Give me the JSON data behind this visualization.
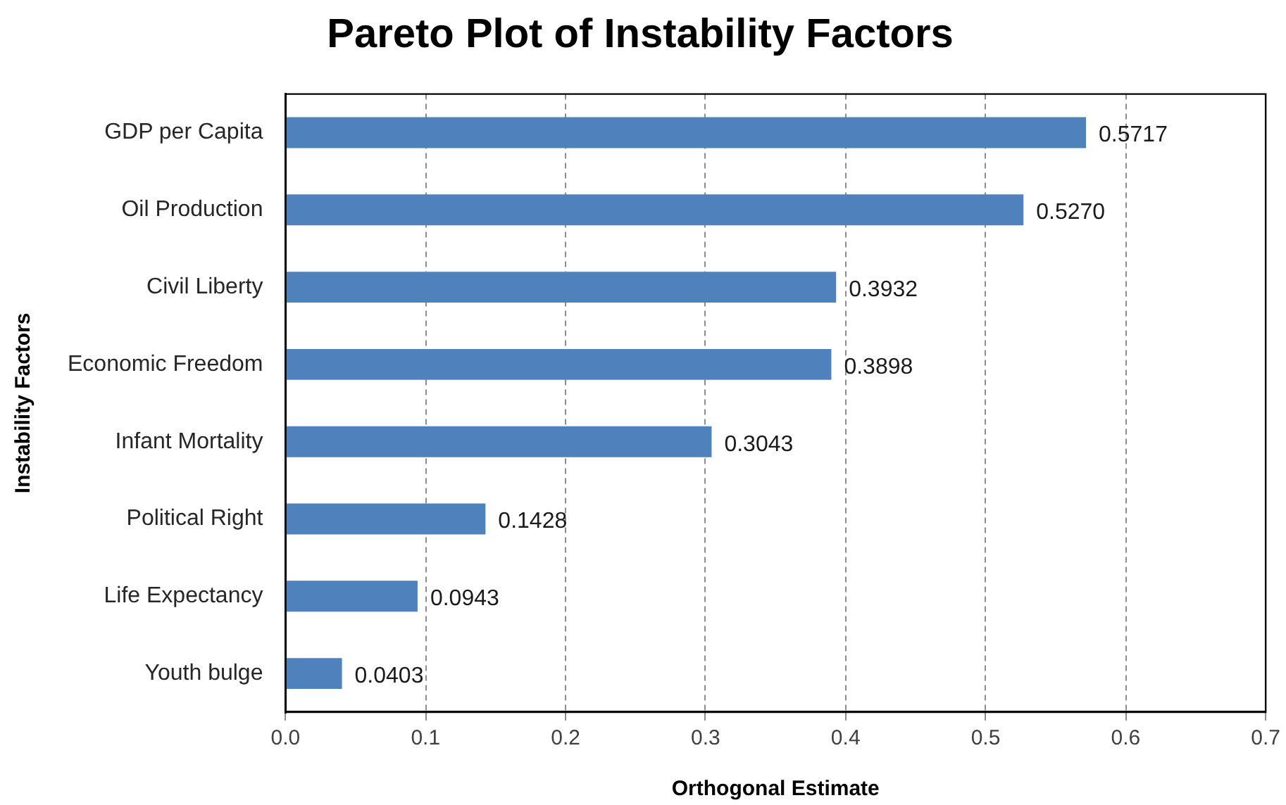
{
  "chart_data": {
    "type": "bar",
    "orientation": "horizontal",
    "title": "Pareto Plot of Instability Factors",
    "xlabel": "Orthogonal Estimate",
    "ylabel": "Instability Factors",
    "categories": [
      "GDP per Capita",
      "Oil Production",
      "Civil Liberty",
      "Economic Freedom",
      "Infant Mortality",
      "Political Right",
      "Life Expectancy",
      "Youth bulge"
    ],
    "values": [
      0.5717,
      0.527,
      0.3932,
      0.3898,
      0.3043,
      0.1428,
      0.0943,
      0.0403
    ],
    "value_labels": [
      "0.5717",
      "0.5270",
      "0.3932",
      "0.3898",
      "0.3043",
      "0.1428",
      "0.0943",
      "0.0403"
    ],
    "color": "#4f81bd",
    "xlim": [
      0,
      0.7
    ],
    "xticks": [
      {
        "value": 0,
        "label": "0.0"
      },
      0.1,
      0.2,
      0.3,
      0.4,
      0.5,
      0.6,
      0.7
    ],
    "grid": "x"
  }
}
